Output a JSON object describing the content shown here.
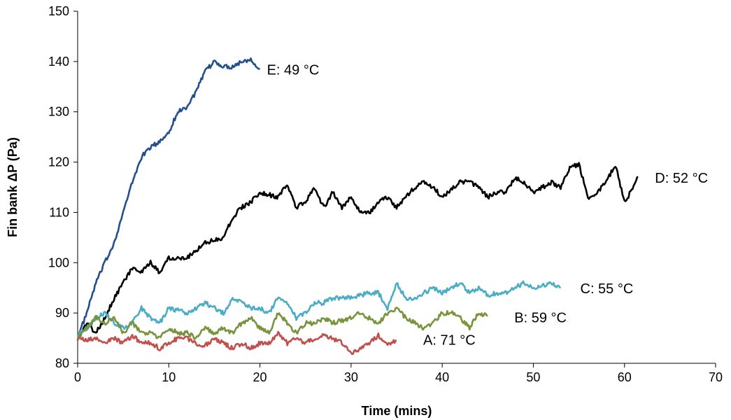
{
  "chart_data": {
    "type": "line",
    "title": "",
    "xlabel": "Time (mins)",
    "ylabel": "Fin bank ΔP (Pa)",
    "xlim": [
      0,
      70
    ],
    "ylim": [
      80,
      150
    ],
    "xticks": [
      0,
      10,
      20,
      30,
      40,
      50,
      60,
      70
    ],
    "yticks": [
      80,
      90,
      100,
      110,
      120,
      130,
      140,
      150
    ],
    "grid": false,
    "legend": "inline labels at line ends",
    "series": [
      {
        "name": "E: 49 °C",
        "color": "#254F8C",
        "points": [
          [
            0,
            85
          ],
          [
            1,
            90
          ],
          [
            2,
            96
          ],
          [
            3,
            100
          ],
          [
            4,
            104
          ],
          [
            5,
            110
          ],
          [
            6,
            116
          ],
          [
            7,
            121
          ],
          [
            8,
            123
          ],
          [
            9,
            124
          ],
          [
            10,
            126
          ],
          [
            11,
            130
          ],
          [
            12,
            131
          ],
          [
            13,
            134
          ],
          [
            14,
            138
          ],
          [
            15,
            140
          ],
          [
            16,
            139
          ],
          [
            17,
            139
          ],
          [
            18,
            140
          ],
          [
            19,
            140.5
          ],
          [
            20,
            138.5
          ]
        ]
      },
      {
        "name": "D: 52 °C",
        "color": "#000000",
        "points": [
          [
            0,
            85
          ],
          [
            1,
            88
          ],
          [
            2,
            86
          ],
          [
            3,
            89
          ],
          [
            4,
            93
          ],
          [
            5,
            96
          ],
          [
            6,
            99
          ],
          [
            7,
            98
          ],
          [
            8,
            100
          ],
          [
            9,
            98
          ],
          [
            10,
            101
          ],
          [
            12,
            101
          ],
          [
            14,
            104
          ],
          [
            16,
            105
          ],
          [
            17,
            109
          ],
          [
            18,
            111
          ],
          [
            19,
            112
          ],
          [
            20,
            114
          ],
          [
            22,
            113
          ],
          [
            23,
            115.5
          ],
          [
            24,
            111
          ],
          [
            25,
            112
          ],
          [
            26,
            115
          ],
          [
            27,
            111
          ],
          [
            28,
            114
          ],
          [
            29,
            111
          ],
          [
            30,
            113
          ],
          [
            31,
            110
          ],
          [
            32,
            110
          ],
          [
            33,
            112
          ],
          [
            34,
            113
          ],
          [
            35,
            111
          ],
          [
            36,
            113
          ],
          [
            37,
            115
          ],
          [
            38,
            116
          ],
          [
            39,
            115
          ],
          [
            40,
            113
          ],
          [
            42,
            116
          ],
          [
            43,
            116
          ],
          [
            44,
            115
          ],
          [
            45,
            113
          ],
          [
            46,
            114
          ],
          [
            47,
            114
          ],
          [
            48,
            117
          ],
          [
            49,
            116
          ],
          [
            50,
            114
          ],
          [
            51,
            115
          ],
          [
            52,
            116
          ],
          [
            53,
            115
          ],
          [
            54,
            119
          ],
          [
            55,
            119.5
          ],
          [
            56,
            113
          ],
          [
            57,
            114
          ],
          [
            58,
            116
          ],
          [
            59,
            119.5
          ],
          [
            60,
            112
          ],
          [
            61,
            115
          ],
          [
            61.5,
            117
          ]
        ]
      },
      {
        "name": "C: 55 °C",
        "color": "#4BACC6",
        "points": [
          [
            0,
            86
          ],
          [
            1,
            87
          ],
          [
            2,
            89
          ],
          [
            3,
            90
          ],
          [
            4,
            88
          ],
          [
            5,
            87
          ],
          [
            6,
            88
          ],
          [
            7,
            91
          ],
          [
            8,
            89
          ],
          [
            9,
            88
          ],
          [
            10,
            91
          ],
          [
            12,
            90
          ],
          [
            14,
            92
          ],
          [
            16,
            90
          ],
          [
            17,
            93
          ],
          [
            18,
            92
          ],
          [
            19,
            91
          ],
          [
            20,
            91
          ],
          [
            21,
            90
          ],
          [
            22,
            93
          ],
          [
            23,
            92
          ],
          [
            24,
            89
          ],
          [
            25,
            90
          ],
          [
            26,
            92
          ],
          [
            27,
            92
          ],
          [
            28,
            93
          ],
          [
            30,
            93
          ],
          [
            32,
            94
          ],
          [
            33,
            94
          ],
          [
            34,
            91
          ],
          [
            35,
            96
          ],
          [
            36,
            93
          ],
          [
            37,
            93
          ],
          [
            38,
            94
          ],
          [
            39,
            95
          ],
          [
            40,
            94
          ],
          [
            41,
            95
          ],
          [
            42,
            96
          ],
          [
            43,
            94
          ],
          [
            44,
            95
          ],
          [
            45,
            93.5
          ],
          [
            46,
            94
          ],
          [
            47,
            94
          ],
          [
            48,
            95
          ],
          [
            49,
            96
          ],
          [
            50,
            95
          ],
          [
            51,
            95.5
          ],
          [
            52,
            96
          ],
          [
            53,
            95
          ]
        ]
      },
      {
        "name": "B: 59 °C",
        "color": "#77933C",
        "points": [
          [
            0,
            85
          ],
          [
            2,
            89
          ],
          [
            3,
            88
          ],
          [
            4,
            89
          ],
          [
            5,
            86
          ],
          [
            6,
            88
          ],
          [
            7,
            86
          ],
          [
            8,
            86
          ],
          [
            9,
            85
          ],
          [
            10,
            87
          ],
          [
            11,
            86
          ],
          [
            12,
            86
          ],
          [
            13,
            85
          ],
          [
            14,
            87
          ],
          [
            15,
            86
          ],
          [
            16,
            87
          ],
          [
            17,
            86
          ],
          [
            18,
            88
          ],
          [
            19,
            89
          ],
          [
            20,
            87
          ],
          [
            21,
            86
          ],
          [
            22,
            90
          ],
          [
            23,
            88
          ],
          [
            24,
            86
          ],
          [
            25,
            88
          ],
          [
            26,
            88
          ],
          [
            27,
            89
          ],
          [
            28,
            88
          ],
          [
            30,
            89
          ],
          [
            31,
            90
          ],
          [
            32,
            89
          ],
          [
            33,
            88
          ],
          [
            34,
            90
          ],
          [
            35,
            91
          ],
          [
            36,
            89
          ],
          [
            37,
            88
          ],
          [
            38,
            87
          ],
          [
            39,
            88
          ],
          [
            40,
            90
          ],
          [
            41,
            90
          ],
          [
            42,
            89
          ],
          [
            43,
            87
          ],
          [
            44,
            90
          ],
          [
            45,
            89.5
          ]
        ]
      },
      {
        "name": "A: 71 °C",
        "color": "#C0504D",
        "points": [
          [
            0,
            85
          ],
          [
            1,
            84.5
          ],
          [
            2,
            85
          ],
          [
            3,
            84
          ],
          [
            4,
            85
          ],
          [
            5,
            84
          ],
          [
            6,
            85.5
          ],
          [
            7,
            84
          ],
          [
            8,
            84
          ],
          [
            9,
            83
          ],
          [
            10,
            84
          ],
          [
            11,
            85
          ],
          [
            12,
            85
          ],
          [
            13,
            84
          ],
          [
            14,
            83.5
          ],
          [
            15,
            85
          ],
          [
            16,
            84
          ],
          [
            17,
            83
          ],
          [
            18,
            84
          ],
          [
            19,
            83
          ],
          [
            20,
            84
          ],
          [
            21,
            84
          ],
          [
            22,
            86
          ],
          [
            23,
            84
          ],
          [
            24,
            85
          ],
          [
            25,
            84
          ],
          [
            26,
            85
          ],
          [
            27,
            85.5
          ],
          [
            28,
            85
          ],
          [
            29,
            84
          ],
          [
            30,
            82
          ],
          [
            31,
            83
          ],
          [
            32,
            84
          ],
          [
            33,
            85.5
          ],
          [
            34,
            84
          ],
          [
            35,
            84.5
          ]
        ]
      }
    ]
  }
}
